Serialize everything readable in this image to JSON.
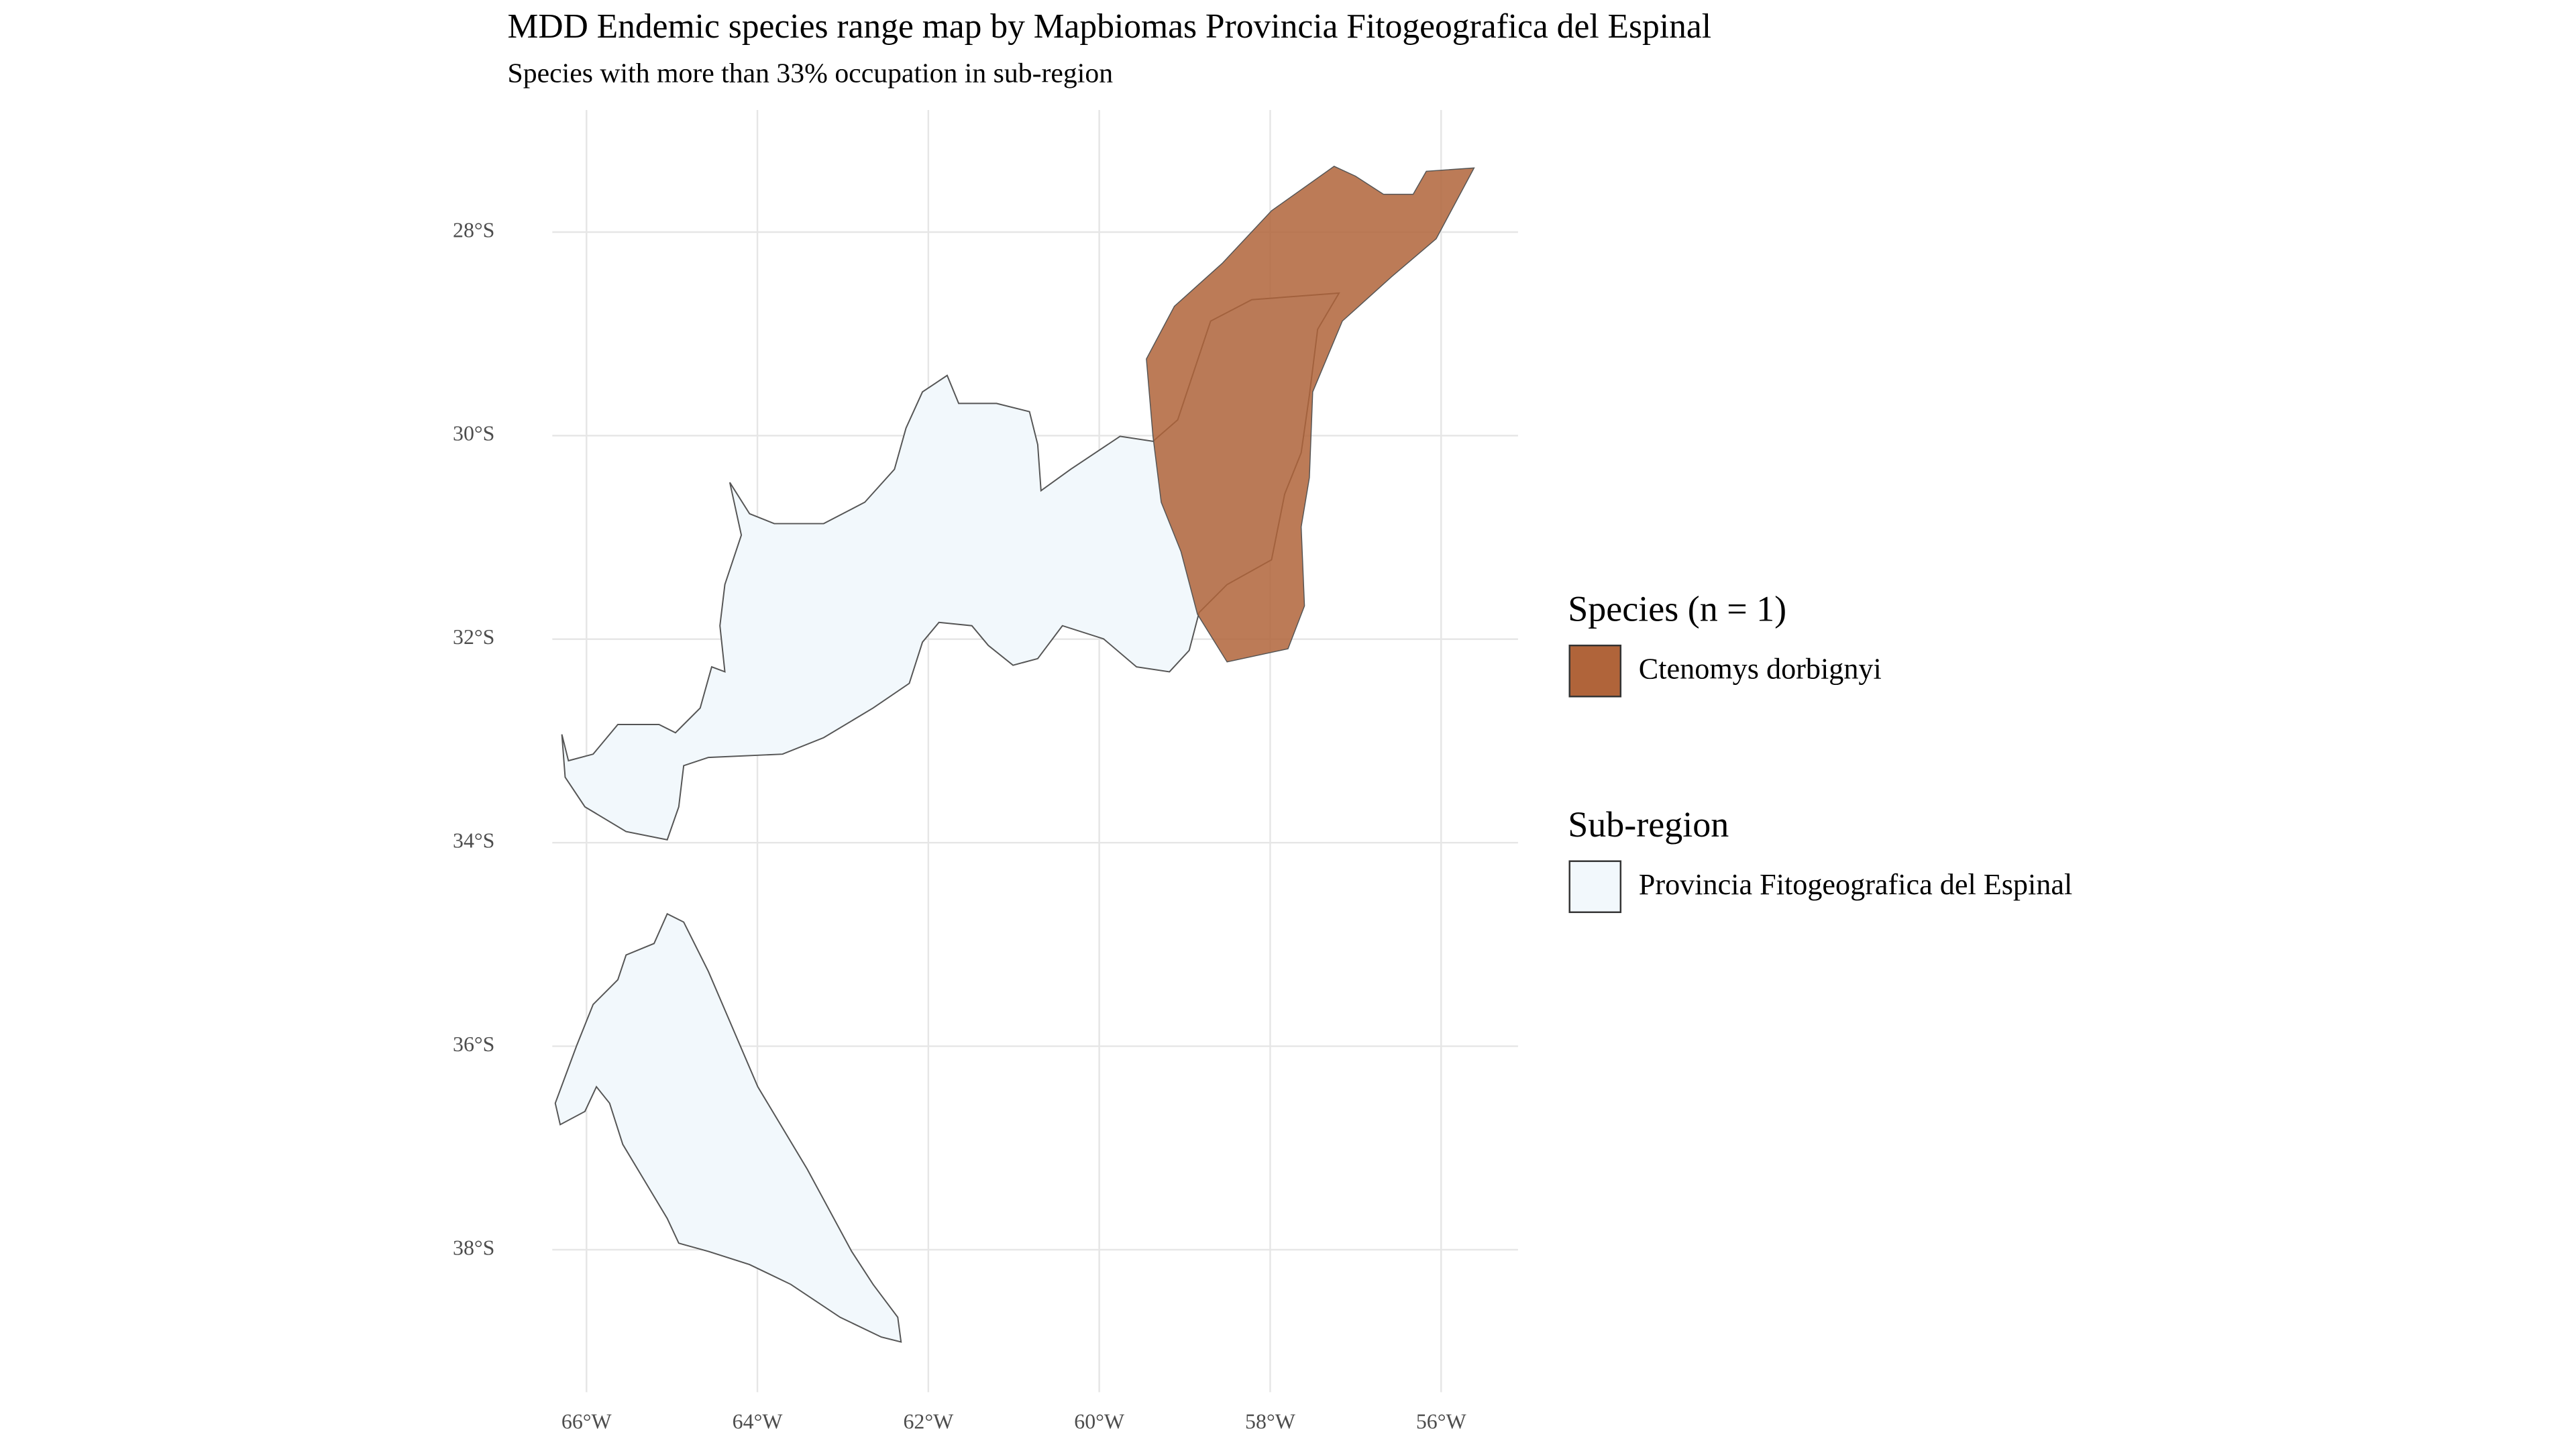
{
  "chart_data": {
    "type": "map",
    "title": "MDD Endemic species range map by Mapbiomas Provincia Fitogeografica del Espinal",
    "subtitle": "Species with more than 33% occupation in sub-region",
    "xlim": [
      -66.4,
      -55.1
    ],
    "ylim": [
      -39.4,
      -26.8
    ],
    "xticks": [
      {
        "value": -66,
        "label": "66°W"
      },
      {
        "value": -64,
        "label": "64°W"
      },
      {
        "value": -62,
        "label": "62°W"
      },
      {
        "value": -60,
        "label": "60°W"
      },
      {
        "value": -58,
        "label": "58°W"
      },
      {
        "value": -56,
        "label": "56°W"
      }
    ],
    "yticks": [
      {
        "value": -28,
        "label": "28°S"
      },
      {
        "value": -30,
        "label": "30°S"
      },
      {
        "value": -32,
        "label": "32°S"
      },
      {
        "value": -34,
        "label": "34°S"
      },
      {
        "value": -36,
        "label": "36°S"
      },
      {
        "value": -38,
        "label": "38°S"
      }
    ],
    "grid": true,
    "legends": [
      {
        "title": "Species (n = 1)",
        "entries": [
          {
            "name": "Ctenomys dorbignyi",
            "color": "#b0643a"
          }
        ]
      },
      {
        "title": "Sub-region",
        "entries": [
          {
            "name": "Provincia Fitogeografica del Espinal",
            "color": "#f2f8fc"
          }
        ]
      }
    ]
  }
}
